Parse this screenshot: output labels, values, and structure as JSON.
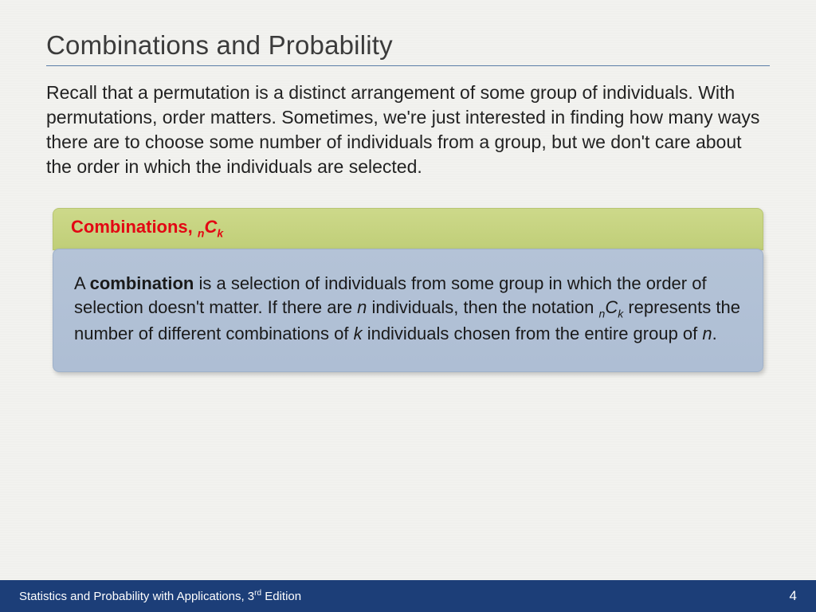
{
  "colors": {
    "background": "#f2f2ef",
    "title_text": "#3b3b3b",
    "title_rule": "#5c7ea8",
    "body_text": "#222222",
    "green_bar_top": "#cdd98a",
    "green_bar_bottom": "#c0ce78",
    "green_bar_border": "#b8c571",
    "red_label": "#e30613",
    "blue_box_top": "#b4c3d7",
    "blue_box_bottom": "#aebed4",
    "blue_box_border": "#9fb1c9",
    "footer_bg": "#1c3e78",
    "footer_text": "#ffffff"
  },
  "typography": {
    "title_fontsize": 33,
    "body_fontsize": 23,
    "box_heading_fontsize": 22,
    "box_body_fontsize": 22,
    "footer_fontsize": 15
  },
  "title": "Combinations and Probability",
  "intro": "Recall that a permutation is a distinct arrangement of some group of individuals. With permutations, order matters. Sometimes, we're just interested in finding how many ways there are to choose some number of individuals from a group, but we don't care about the order in which the individuals are selected.",
  "green_bar": {
    "label": "Combinations, ",
    "notation_n": "n",
    "notation_C": "C",
    "notation_k": "k"
  },
  "blue_box": {
    "p1a": "A ",
    "p1b": "combination",
    "p1c": " is a selection of individuals from some group in which the order of selection doesn't matter. If there are ",
    "p1d": "n",
    "p1e": " individuals, then the notation ",
    "p1f_n": "n",
    "p1f_C": "C",
    "p1f_k": "k",
    "p1g": " represents the number of different combinations of ",
    "p1h": "k",
    "p1i": " individuals chosen from the entire group of ",
    "p1j": "n",
    "p1k": "."
  },
  "footer": {
    "book_a": "Statistics and Probability with Applications, 3",
    "book_sup": "rd",
    "book_b": " Edition",
    "page": "4"
  }
}
